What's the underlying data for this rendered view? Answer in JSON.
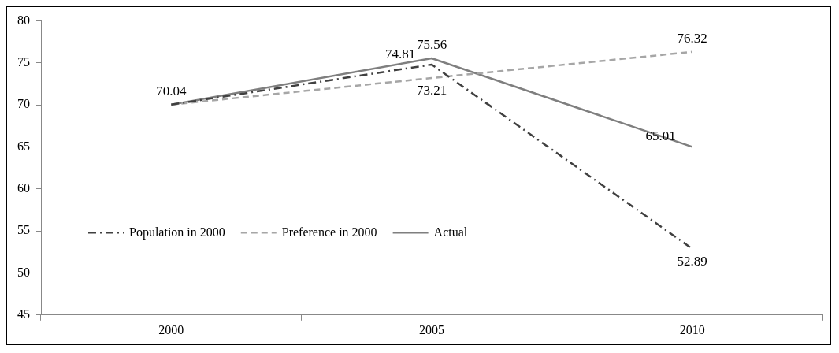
{
  "chart_data": {
    "type": "line",
    "categories": [
      "2000",
      "2005",
      "2010"
    ],
    "ylim": [
      45,
      80
    ],
    "yticks": [
      45,
      50,
      55,
      60,
      65,
      70,
      75,
      80
    ],
    "grid": false,
    "legend": "left",
    "marker": "none",
    "series": [
      {
        "name": "Population in 2000",
        "color": "#404040",
        "line_style": "dashdot",
        "values": [
          70.04,
          74.81,
          52.89
        ],
        "value_labels": [
          null,
          "74.81",
          "52.89"
        ]
      },
      {
        "name": "Preference in 2000",
        "color": "#a6a6a6",
        "line_style": "dashed",
        "values": [
          70.04,
          73.21,
          76.32
        ],
        "value_labels": [
          null,
          "73.21",
          "76.32"
        ]
      },
      {
        "name": "Actual",
        "color": "#7f7f7f",
        "line_style": "solid",
        "values": [
          70.04,
          75.56,
          65.01
        ],
        "value_labels": [
          "70.04",
          "75.56",
          "65.01"
        ]
      }
    ]
  }
}
